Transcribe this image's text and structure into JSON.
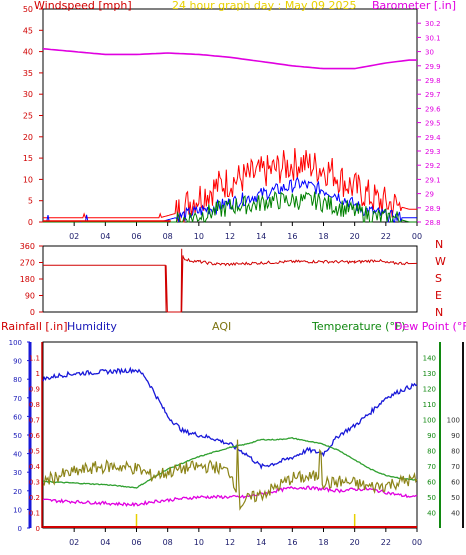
{
  "page_title": "24 hour graph day : May 09 2025",
  "chart_data": [
    {
      "id": "wind_baro",
      "type": "line",
      "title": "24 hour graph day : May 09 2025",
      "ylabel_left": "Windspeed [mph]",
      "ylabel_right": "Barometer [.in]",
      "ylim_left": [
        0,
        50
      ],
      "ylim_right": [
        28.8,
        30.3
      ],
      "x_ticks": [
        "02",
        "04",
        "06",
        "08",
        "10",
        "12",
        "14",
        "16",
        "18",
        "20",
        "22",
        "00"
      ],
      "y_ticks_left": [
        "0",
        "5",
        "10",
        "15",
        "20",
        "25",
        "30",
        "35",
        "40",
        "45",
        "50"
      ],
      "y_ticks_right": [
        "28.8",
        "28.9",
        "29",
        "29.1",
        "29.2",
        "29.3",
        "29.4",
        "29.5",
        "29.6",
        "29.7",
        "29.8",
        "29.9",
        "30",
        "30.1",
        "30.2"
      ],
      "series": [
        {
          "key": "barometer",
          "axis": "right",
          "color": "#e000e0",
          "x": [
            0,
            2,
            4,
            6,
            8,
            10,
            12,
            14,
            16,
            18,
            20,
            22,
            23.5
          ],
          "values": [
            30.02,
            30.0,
            29.98,
            29.98,
            29.99,
            29.98,
            29.96,
            29.93,
            29.9,
            29.88,
            29.88,
            29.92,
            29.94
          ]
        },
        {
          "key": "windspeed_high",
          "axis": "left",
          "color": "#ff0000",
          "x": [
            0,
            7.5,
            8.5,
            9.5,
            10.5,
            11.5,
            12.5,
            13.5,
            14.5,
            15.5,
            16.5,
            17.5,
            18.5,
            19.5,
            20.5,
            21.5,
            22.5,
            23.5
          ],
          "values": [
            1,
            1,
            2,
            5,
            7,
            9,
            10,
            11,
            12,
            13,
            14,
            13,
            12,
            9,
            7,
            5,
            4,
            3
          ]
        },
        {
          "key": "windspeed_avg",
          "axis": "left",
          "color": "#0000ff",
          "x": [
            0,
            7.5,
            8.5,
            9.5,
            10.5,
            11.5,
            12.5,
            13.5,
            14.5,
            15.5,
            16.5,
            17.5,
            18.5,
            19.5,
            20.5,
            21.5,
            22.5,
            23.5
          ],
          "values": [
            0,
            0,
            1,
            2,
            3,
            4,
            5,
            6,
            7,
            8,
            9,
            8,
            7,
            5,
            3,
            2,
            1,
            1
          ]
        },
        {
          "key": "windspeed_low",
          "axis": "left",
          "color": "#008000",
          "x": [
            0,
            7.5,
            8.5,
            9.5,
            10.5,
            11.5,
            12.5,
            13.5,
            14.5,
            15.5,
            16.5,
            17.5,
            18.5,
            19.5,
            20.5,
            21.5,
            22.5,
            23.5
          ],
          "values": [
            0,
            0,
            0,
            1,
            2,
            3,
            4,
            4,
            5,
            5,
            5,
            5,
            4,
            3,
            2,
            1,
            1,
            0
          ]
        }
      ]
    },
    {
      "id": "wind_direction",
      "type": "line",
      "ylim": [
        0,
        360
      ],
      "y_ticks": [
        "0",
        "90",
        "180",
        "270",
        "360"
      ],
      "direction_labels": [
        "N",
        "W",
        "S",
        "E",
        "N"
      ],
      "x_ticks": [
        "02",
        "04",
        "06",
        "08",
        "10",
        "12",
        "14",
        "16",
        "18",
        "20",
        "22",
        "00"
      ],
      "series": [
        {
          "key": "direction",
          "color": "#d00000",
          "x": [
            0,
            7.9,
            7.9,
            8.9,
            8.9,
            9.0,
            9.1,
            10,
            11,
            12,
            14,
            16,
            18,
            20,
            21.5,
            22,
            23.5
          ],
          "values": [
            255,
            255,
            0,
            0,
            345,
            300,
            285,
            275,
            262,
            260,
            268,
            275,
            275,
            272,
            282,
            268,
            265
          ]
        }
      ]
    },
    {
      "id": "rain_hum_temp",
      "type": "line",
      "ylabel_left": "Rainfall [.in]",
      "ylabel_left2": "Humidity",
      "ylabel_mid": "AQI",
      "ylabel_right": "Temperature (°F)",
      "ylabel_right2": "Dew Point (°F)",
      "ylim_humidity": [
        0,
        100
      ],
      "ylim_rain": [
        0,
        1.2
      ],
      "ylim_temp": [
        30,
        150
      ],
      "y_ticks_humidity": [
        "0",
        "10",
        "20",
        "30",
        "40",
        "50",
        "60",
        "70",
        "80",
        "90",
        "100"
      ],
      "y_ticks_rain": [
        "0",
        "0.1",
        "0.2",
        "0.3",
        "0.4",
        "0.5",
        "0.6",
        "0.7",
        "0.8",
        "0.9",
        "1",
        "1.1"
      ],
      "y_ticks_temp": [
        "40",
        "50",
        "60",
        "70",
        "80",
        "90",
        "100",
        "110",
        "120",
        "130",
        "140"
      ],
      "y_ticks_dew": [
        "40",
        "50",
        "60",
        "70",
        "80",
        "90",
        "100"
      ],
      "x_ticks": [
        "02",
        "04",
        "06",
        "08",
        "10",
        "12",
        "14",
        "16",
        "18",
        "20",
        "22",
        "00"
      ],
      "series": [
        {
          "key": "humidity",
          "axis": "humidity",
          "color": "#1818d8",
          "x": [
            0,
            1,
            2,
            4,
            6,
            6.5,
            7,
            8,
            9,
            10,
            11,
            12,
            13,
            14,
            15,
            16,
            17,
            18,
            19,
            20,
            21,
            22,
            23,
            23.9
          ],
          "values": [
            80,
            82,
            83,
            84,
            85,
            82,
            75,
            60,
            52,
            50,
            48,
            45,
            40,
            33,
            35,
            38,
            42,
            40,
            50,
            55,
            62,
            70,
            74,
            77
          ]
        },
        {
          "key": "temperature",
          "axis": "temp",
          "color": "#30a030",
          "x": [
            0,
            2,
            4,
            5,
            6,
            7,
            8,
            9,
            10,
            11,
            12,
            13,
            14,
            15,
            16,
            17,
            18,
            19,
            20,
            21,
            22,
            23,
            23.9
          ],
          "values": [
            60,
            59,
            58,
            57,
            56,
            62,
            68,
            72,
            76,
            79,
            82,
            84,
            87,
            87,
            88,
            86,
            84,
            80,
            74,
            68,
            64,
            62,
            61
          ]
        },
        {
          "key": "dew_point",
          "axis": "temp",
          "color": "#e000e0",
          "x": [
            0,
            2,
            4,
            6,
            7,
            8,
            9,
            10,
            11,
            12,
            13,
            14,
            15,
            16,
            17,
            18,
            19,
            20,
            21,
            22,
            23,
            23.9
          ],
          "values": [
            48,
            47,
            46,
            45,
            47,
            48,
            49,
            50,
            50,
            50,
            50,
            52,
            54,
            56,
            56,
            55,
            54,
            55,
            55,
            53,
            51,
            50
          ]
        },
        {
          "key": "aqi",
          "axis": "humidity",
          "color": "#8c8418",
          "x": [
            0,
            1,
            2,
            3,
            4,
            5,
            6,
            7,
            8,
            9,
            10,
            11,
            12,
            12.4,
            12.5,
            12.6,
            13,
            14,
            15,
            16,
            17,
            17.7,
            17.8,
            17.9,
            18.5,
            19,
            20,
            21,
            22,
            23,
            23.9
          ],
          "values": [
            25,
            28,
            30,
            32,
            33,
            33,
            32,
            28,
            30,
            32,
            33,
            33,
            30,
            22,
            50,
            12,
            15,
            18,
            22,
            27,
            27,
            28,
            55,
            25,
            24,
            25,
            24,
            22,
            23,
            25,
            26
          ]
        },
        {
          "key": "rainfall",
          "axis": "rain",
          "color": "#d00000",
          "x": [
            0,
            23.9
          ],
          "values": [
            0,
            0
          ]
        }
      ]
    }
  ]
}
